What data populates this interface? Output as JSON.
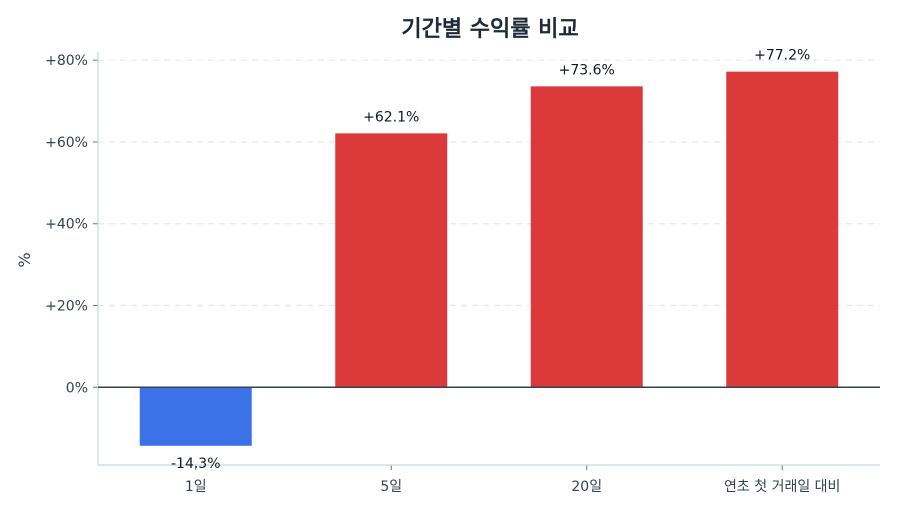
{
  "chart_data": {
    "type": "bar",
    "title": "기간별 수익률 비교",
    "xlabel": "",
    "ylabel": "%",
    "categories": [
      "1일",
      "5일",
      "20일",
      "연초 첫 거래일 대비"
    ],
    "values": [
      -14.3,
      62.1,
      73.6,
      77.2
    ],
    "data_labels": [
      "-14.3%",
      "+62.1%",
      "+73.6%",
      "+77.2%"
    ],
    "ylim": [
      -19,
      82
    ],
    "yticks": [
      0,
      20,
      40,
      60,
      80
    ],
    "ytick_labels": [
      "0%",
      "+20%",
      "+40%",
      "+60%",
      "+80%"
    ],
    "grid": "horizontal dashed",
    "colors": {
      "positive": "#dc3a3a",
      "negative": "#3b72e8",
      "zero_line": "#374151",
      "grid": "#e5e7eb",
      "axis": "#cbd5e1"
    }
  }
}
